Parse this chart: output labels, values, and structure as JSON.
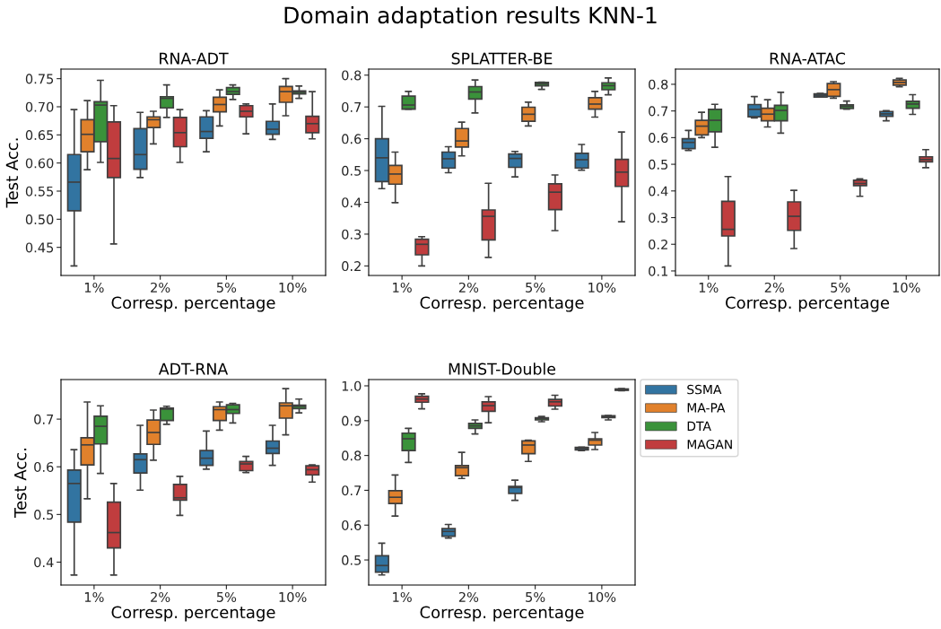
{
  "chart_data": [
    {
      "type": "box",
      "title": "RNA-ADT",
      "xlabel": "Corresp. percentage",
      "ylabel": "Test Acc.",
      "annotations": [
        "Domain adaptation results KNN-1"
      ],
      "categories": [
        "1%",
        "2%",
        "5%",
        "10%"
      ],
      "ylim": [
        0.4,
        0.767
      ],
      "yticks": [
        0.45,
        {
          "value": 0.5,
          "label": "0.50"
        },
        0.55,
        {
          "value": 0.6,
          "label": "0.60"
        },
        0.65,
        {
          "value": 0.7,
          "label": "0.70"
        },
        0.75
      ],
      "grid": false,
      "series": [
        {
          "color": "#3274a1",
          "boxes": [
            {
              "low": 0.417,
              "q1": 0.515,
              "median": 0.566,
              "q3": 0.615,
              "high": 0.695
            },
            {
              "low": 0.574,
              "q1": 0.589,
              "median": 0.615,
              "q3": 0.661,
              "high": 0.69
            },
            {
              "low": 0.62,
              "q1": 0.644,
              "median": 0.656,
              "q3": 0.682,
              "high": 0.693
            },
            {
              "low": 0.642,
              "q1": 0.651,
              "median": 0.66,
              "q3": 0.674,
              "high": 0.705
            }
          ]
        },
        {
          "color": "#e1812c",
          "boxes": [
            {
              "low": 0.588,
              "q1": 0.62,
              "median": 0.651,
              "q3": 0.677,
              "high": 0.711
            },
            {
              "low": 0.634,
              "q1": 0.663,
              "median": 0.677,
              "q3": 0.682,
              "high": 0.692
            },
            {
              "low": 0.666,
              "q1": 0.691,
              "median": 0.704,
              "q3": 0.717,
              "high": 0.73
            },
            {
              "low": 0.684,
              "q1": 0.708,
              "median": 0.727,
              "q3": 0.736,
              "high": 0.75
            }
          ]
        },
        {
          "color": "#3a923a",
          "boxes": [
            {
              "low": 0.601,
              "q1": 0.638,
              "median": 0.703,
              "q3": 0.709,
              "high": 0.747
            },
            {
              "low": 0.681,
              "q1": 0.698,
              "median": 0.715,
              "q3": 0.718,
              "high": 0.739
            },
            {
              "low": 0.713,
              "q1": 0.722,
              "median": 0.727,
              "q3": 0.734,
              "high": 0.739
            },
            {
              "low": 0.715,
              "q1": 0.723,
              "median": 0.726,
              "q3": 0.728,
              "high": 0.737
            }
          ]
        },
        {
          "color": "#c03d3e",
          "boxes": [
            {
              "low": 0.456,
              "q1": 0.574,
              "median": 0.608,
              "q3": 0.673,
              "high": 0.702
            },
            {
              "low": 0.601,
              "q1": 0.629,
              "median": 0.654,
              "q3": 0.681,
              "high": 0.695
            },
            {
              "low": 0.652,
              "q1": 0.682,
              "median": 0.692,
              "q3": 0.702,
              "high": 0.705
            },
            {
              "low": 0.643,
              "q1": 0.654,
              "median": 0.67,
              "q3": 0.683,
              "high": 0.727
            }
          ]
        }
      ]
    },
    {
      "type": "box",
      "title": "SPLATTER-BE",
      "xlabel": "Corresp. percentage",
      "categories": [
        "1%",
        "2%",
        "5%",
        "10%"
      ],
      "ylim": [
        0.17,
        0.819
      ],
      "yticks": [
        0.2,
        0.3,
        0.4,
        0.5,
        0.6,
        0.7,
        0.8
      ],
      "grid": false,
      "series": [
        {
          "color": "#3274a1",
          "boxes": [
            {
              "low": 0.443,
              "q1": 0.465,
              "median": 0.54,
              "q3": 0.6,
              "high": 0.702
            },
            {
              "low": 0.493,
              "q1": 0.508,
              "median": 0.537,
              "q3": 0.558,
              "high": 0.575
            },
            {
              "low": 0.48,
              "q1": 0.51,
              "median": 0.538,
              "q3": 0.552,
              "high": 0.56
            },
            {
              "low": 0.501,
              "q1": 0.508,
              "median": 0.534,
              "q3": 0.554,
              "high": 0.582
            }
          ]
        },
        {
          "color": "#e1812c",
          "boxes": [
            {
              "low": 0.399,
              "q1": 0.457,
              "median": 0.489,
              "q3": 0.516,
              "high": 0.558
            },
            {
              "low": 0.546,
              "q1": 0.574,
              "median": 0.593,
              "q3": 0.632,
              "high": 0.652
            },
            {
              "low": 0.64,
              "q1": 0.655,
              "median": 0.677,
              "q3": 0.699,
              "high": 0.715
            },
            {
              "low": 0.668,
              "q1": 0.693,
              "median": 0.709,
              "q3": 0.729,
              "high": 0.749
            }
          ]
        },
        {
          "color": "#3a923a",
          "boxes": [
            {
              "low": 0.693,
              "q1": 0.693,
              "median": 0.706,
              "q3": 0.734,
              "high": 0.749
            },
            {
              "low": 0.681,
              "q1": 0.725,
              "median": 0.747,
              "q3": 0.764,
              "high": 0.785
            },
            {
              "low": 0.755,
              "q1": 0.766,
              "median": 0.772,
              "q3": 0.777,
              "high": 0.778
            },
            {
              "low": 0.738,
              "q1": 0.754,
              "median": 0.767,
              "q3": 0.776,
              "high": 0.791
            }
          ]
        },
        {
          "color": "#c03d3e",
          "boxes": [
            {
              "low": 0.2,
              "q1": 0.235,
              "median": 0.268,
              "q3": 0.284,
              "high": 0.292
            },
            {
              "low": 0.227,
              "q1": 0.282,
              "median": 0.356,
              "q3": 0.376,
              "high": 0.46
            },
            {
              "low": 0.311,
              "q1": 0.377,
              "median": 0.432,
              "q3": 0.458,
              "high": 0.486
            },
            {
              "low": 0.339,
              "q1": 0.45,
              "median": 0.495,
              "q3": 0.535,
              "high": 0.621
            }
          ]
        }
      ]
    },
    {
      "type": "box",
      "title": "RNA-ATAC",
      "xlabel": "Corresp. percentage",
      "categories": [
        "1%",
        "2%",
        "5%",
        "10%"
      ],
      "ylim": [
        0.083,
        0.857
      ],
      "yticks": [
        0.1,
        0.2,
        0.3,
        0.4,
        0.5,
        0.6,
        0.7,
        0.8
      ],
      "grid": false,
      "series": [
        {
          "color": "#3274a1",
          "boxes": [
            {
              "low": 0.552,
              "q1": 0.559,
              "median": 0.582,
              "q3": 0.596,
              "high": 0.627
            },
            {
              "low": 0.674,
              "q1": 0.678,
              "median": 0.706,
              "q3": 0.724,
              "high": 0.754
            },
            {
              "low": 0.752,
              "q1": 0.752,
              "median": 0.759,
              "q3": 0.764,
              "high": 0.766
            },
            {
              "low": 0.663,
              "q1": 0.68,
              "median": 0.689,
              "q3": 0.698,
              "high": 0.701
            }
          ]
        },
        {
          "color": "#e1812c",
          "boxes": [
            {
              "low": 0.6,
              "q1": 0.61,
              "median": 0.643,
              "q3": 0.665,
              "high": 0.695
            },
            {
              "low": 0.64,
              "q1": 0.663,
              "median": 0.688,
              "q3": 0.71,
              "high": 0.742
            },
            {
              "low": 0.748,
              "q1": 0.755,
              "median": 0.78,
              "q3": 0.803,
              "high": 0.81
            },
            {
              "low": 0.791,
              "q1": 0.797,
              "median": 0.807,
              "q3": 0.816,
              "high": 0.822
            }
          ]
        },
        {
          "color": "#3a923a",
          "boxes": [
            {
              "low": 0.564,
              "q1": 0.622,
              "median": 0.665,
              "q3": 0.706,
              "high": 0.725
            },
            {
              "low": 0.617,
              "q1": 0.663,
              "median": 0.702,
              "q3": 0.721,
              "high": 0.77
            },
            {
              "low": 0.707,
              "q1": 0.709,
              "median": 0.717,
              "q3": 0.723,
              "high": 0.737
            },
            {
              "low": 0.687,
              "q1": 0.71,
              "median": 0.726,
              "q3": 0.736,
              "high": 0.761
            }
          ]
        },
        {
          "color": "#c03d3e",
          "boxes": [
            {
              "low": 0.119,
              "q1": 0.231,
              "median": 0.256,
              "q3": 0.361,
              "high": 0.454
            },
            {
              "low": 0.184,
              "q1": 0.252,
              "median": 0.305,
              "q3": 0.359,
              "high": 0.402
            },
            {
              "low": 0.38,
              "q1": 0.42,
              "median": 0.428,
              "q3": 0.44,
              "high": 0.445
            },
            {
              "low": 0.487,
              "q1": 0.509,
              "median": 0.518,
              "q3": 0.528,
              "high": 0.555
            }
          ]
        }
      ]
    },
    {
      "type": "box",
      "title": "ADT-RNA",
      "xlabel": "Corresp. percentage",
      "ylabel": "Test Acc.",
      "categories": [
        "1%",
        "2%",
        "5%",
        "10%"
      ],
      "ylim": [
        0.352,
        0.783
      ],
      "yticks": [
        0.4,
        0.5,
        0.6,
        0.7
      ],
      "grid": false,
      "series": [
        {
          "color": "#3274a1",
          "boxes": [
            {
              "low": 0.373,
              "q1": 0.484,
              "median": 0.565,
              "q3": 0.593,
              "high": 0.636
            },
            {
              "low": 0.551,
              "q1": 0.587,
              "median": 0.615,
              "q3": 0.627,
              "high": 0.687
            },
            {
              "low": 0.595,
              "q1": 0.603,
              "median": 0.618,
              "q3": 0.634,
              "high": 0.675
            },
            {
              "low": 0.603,
              "q1": 0.628,
              "median": 0.639,
              "q3": 0.654,
              "high": 0.687
            }
          ]
        },
        {
          "color": "#e1812c",
          "boxes": [
            {
              "low": 0.533,
              "q1": 0.604,
              "median": 0.646,
              "q3": 0.661,
              "high": 0.736
            },
            {
              "low": 0.614,
              "q1": 0.647,
              "median": 0.672,
              "q3": 0.698,
              "high": 0.719
            },
            {
              "low": 0.677,
              "q1": 0.697,
              "median": 0.72,
              "q3": 0.726,
              "high": 0.736
            },
            {
              "low": 0.667,
              "q1": 0.702,
              "median": 0.728,
              "q3": 0.734,
              "high": 0.764
            }
          ]
        },
        {
          "color": "#3a923a",
          "boxes": [
            {
              "low": 0.586,
              "q1": 0.648,
              "median": 0.685,
              "q3": 0.706,
              "high": 0.728
            },
            {
              "low": 0.689,
              "q1": 0.697,
              "median": 0.721,
              "q3": 0.723,
              "high": 0.727
            },
            {
              "low": 0.692,
              "q1": 0.712,
              "median": 0.72,
              "q3": 0.73,
              "high": 0.733
            },
            {
              "low": 0.713,
              "q1": 0.722,
              "median": 0.727,
              "q3": 0.729,
              "high": 0.742
            }
          ]
        },
        {
          "color": "#c03d3e",
          "boxes": [
            {
              "low": 0.373,
              "q1": 0.43,
              "median": 0.462,
              "q3": 0.526,
              "high": 0.565
            },
            {
              "low": 0.498,
              "q1": 0.53,
              "median": 0.535,
              "q3": 0.563,
              "high": 0.58
            },
            {
              "low": 0.588,
              "q1": 0.592,
              "median": 0.606,
              "q3": 0.611,
              "high": 0.622
            },
            {
              "low": 0.568,
              "q1": 0.583,
              "median": 0.594,
              "q3": 0.602,
              "high": 0.604
            }
          ]
        }
      ]
    },
    {
      "type": "box",
      "title": "MNIST-Double",
      "xlabel": "Corresp. percentage",
      "categories": [
        "1%",
        "2%",
        "5%",
        "10%"
      ],
      "ylim": [
        0.428,
        1.018
      ],
      "yticks": [
        0.5,
        0.6,
        0.7,
        0.8,
        0.9,
        {
          "value": 1,
          "label": "1.0"
        }
      ],
      "grid": false,
      "legend": "right",
      "series": [
        {
          "name": "SSMA",
          "color": "#3274a1",
          "boxes": [
            {
              "low": 0.457,
              "q1": 0.465,
              "median": 0.484,
              "q3": 0.512,
              "high": 0.548
            },
            {
              "low": 0.563,
              "q1": 0.568,
              "median": 0.582,
              "q3": 0.59,
              "high": 0.602
            },
            {
              "low": 0.671,
              "q1": 0.691,
              "median": 0.708,
              "q3": 0.711,
              "high": 0.729
            },
            {
              "low": 0.814,
              "q1": 0.816,
              "median": 0.82,
              "q3": 0.823,
              "high": 0.824
            }
          ]
        },
        {
          "name": "MA-PA",
          "color": "#e1812c",
          "boxes": [
            {
              "low": 0.626,
              "q1": 0.662,
              "median": 0.68,
              "q3": 0.699,
              "high": 0.744
            },
            {
              "low": 0.734,
              "q1": 0.742,
              "median": 0.765,
              "q3": 0.771,
              "high": 0.809
            },
            {
              "low": 0.783,
              "q1": 0.805,
              "median": 0.83,
              "q3": 0.842,
              "high": 0.844
            },
            {
              "low": 0.817,
              "q1": 0.83,
              "median": 0.844,
              "q3": 0.848,
              "high": 0.866
            }
          ]
        },
        {
          "name": "DTA",
          "color": "#3a923a",
          "boxes": [
            {
              "low": 0.78,
              "q1": 0.814,
              "median": 0.848,
              "q3": 0.864,
              "high": 0.878
            },
            {
              "low": 0.862,
              "q1": 0.878,
              "median": 0.885,
              "q3": 0.892,
              "high": 0.902
            },
            {
              "low": 0.897,
              "q1": 0.902,
              "median": 0.906,
              "q3": 0.908,
              "high": 0.912
            },
            {
              "low": 0.902,
              "q1": 0.909,
              "median": 0.911,
              "q3": 0.914,
              "high": 0.915
            }
          ]
        },
        {
          "name": "MAGAN",
          "color": "#c03d3e",
          "boxes": [
            {
              "low": 0.934,
              "q1": 0.953,
              "median": 0.962,
              "q3": 0.97,
              "high": 0.977
            },
            {
              "low": 0.894,
              "q1": 0.927,
              "median": 0.943,
              "q3": 0.954,
              "high": 0.969
            },
            {
              "low": 0.933,
              "q1": 0.942,
              "median": 0.954,
              "q3": 0.961,
              "high": 0.973
            },
            {
              "low": 0.986,
              "q1": 0.987,
              "median": 0.989,
              "q3": 0.991,
              "high": 0.992
            }
          ]
        }
      ]
    }
  ]
}
